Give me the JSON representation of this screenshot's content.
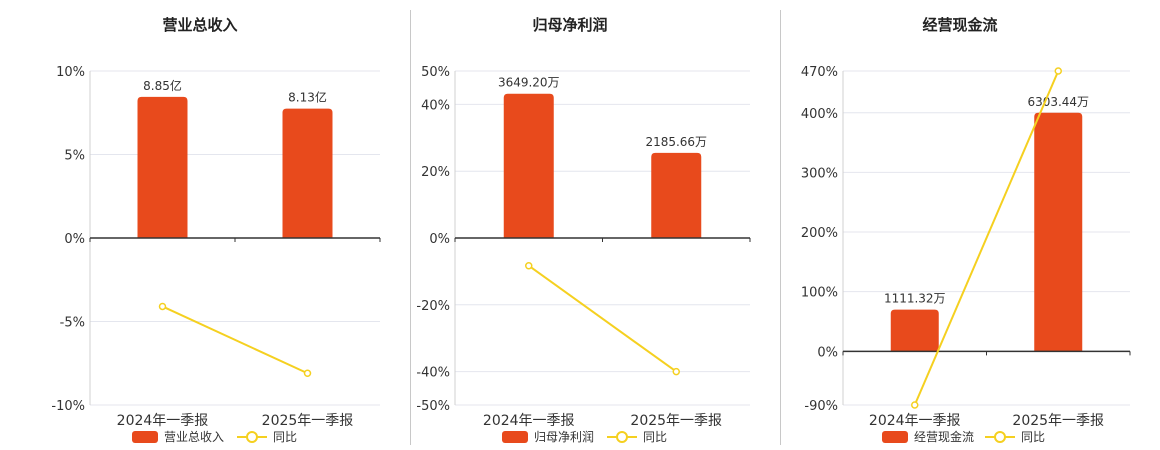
{
  "colors": {
    "bar": "#e84a1c",
    "line": "#f5d020",
    "grid": "#e4e6ee",
    "axis": "#333333"
  },
  "legend": {
    "line_label": "同比"
  },
  "chart_data": [
    {
      "type": "bar",
      "title": "营业总收入",
      "categories": [
        "2024年一季报",
        "2025年一季报"
      ],
      "bar_values": [
        8.45,
        7.75
      ],
      "bar_labels": [
        "8.85亿",
        "8.13亿"
      ],
      "line_values": [
        -4.1,
        -8.1
      ],
      "y_ticks": [
        10,
        5,
        0,
        -5,
        -10
      ],
      "y_tick_labels": [
        "10%",
        "5%",
        "0%",
        "-5%",
        "-10%"
      ],
      "ylim": [
        -10,
        10
      ],
      "series": [
        {
          "name": "营业总收入"
        },
        {
          "name": "同比"
        }
      ]
    },
    {
      "type": "bar",
      "title": "归母净利润",
      "categories": [
        "2024年一季报",
        "2025年一季报"
      ],
      "bar_values": [
        43.2,
        25.5
      ],
      "bar_labels": [
        "3649.20万",
        "2185.66万"
      ],
      "line_values": [
        -8.3,
        -40.0
      ],
      "y_ticks": [
        50,
        40,
        20,
        0,
        -20,
        -40,
        -50
      ],
      "y_tick_labels": [
        "50%",
        "40%",
        "20%",
        "0%",
        "-20%",
        "-40%",
        "-50%"
      ],
      "ylim": [
        -50,
        50
      ],
      "series": [
        {
          "name": "归母净利润"
        },
        {
          "name": "同比"
        }
      ]
    },
    {
      "type": "bar",
      "title": "经营现金流",
      "categories": [
        "2024年一季报",
        "2025年一季报"
      ],
      "bar_values": [
        70,
        400
      ],
      "bar_labels": [
        "1111.32万",
        "6303.44万"
      ],
      "line_values": [
        -90,
        470
      ],
      "y_ticks": [
        470,
        400,
        300,
        200,
        100,
        0,
        -90
      ],
      "y_tick_labels": [
        "470%",
        "400%",
        "300%",
        "200%",
        "100%",
        "0%",
        "-90%"
      ],
      "ylim": [
        -90,
        470
      ],
      "series": [
        {
          "name": "经营现金流"
        },
        {
          "name": "同比"
        }
      ]
    }
  ]
}
